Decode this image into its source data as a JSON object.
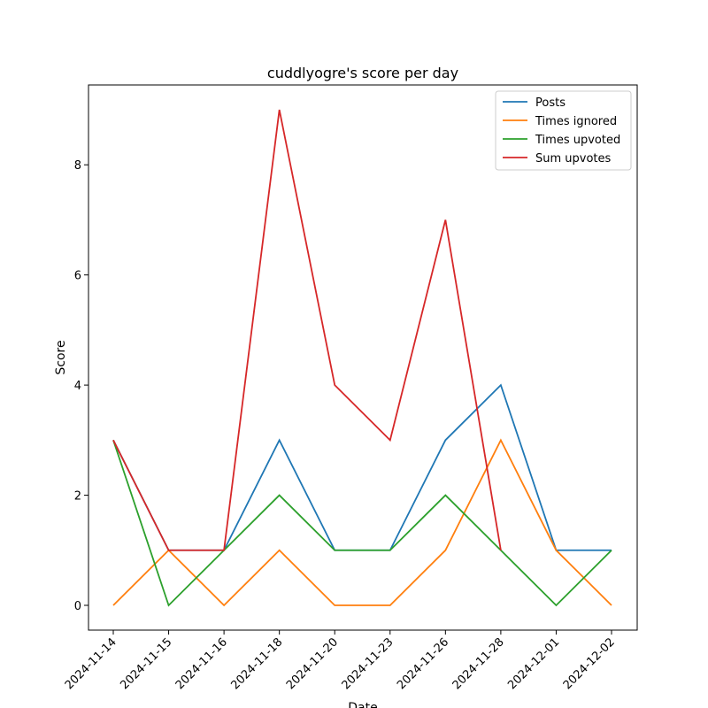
{
  "chart_data": {
    "type": "line",
    "title": "cuddlyogre's score per day",
    "xlabel": "Date",
    "ylabel": "Score",
    "categories": [
      "2024-11-14",
      "2024-11-15",
      "2024-11-16",
      "2024-11-18",
      "2024-11-20",
      "2024-11-23",
      "2024-11-26",
      "2024-11-28",
      "2024-12-01",
      "2024-12-02"
    ],
    "yticks": [
      0,
      2,
      4,
      6,
      8
    ],
    "ylim": [
      -0.45,
      9.45
    ],
    "grid": false,
    "legend_position": "top-right",
    "series": [
      {
        "name": "Posts",
        "color": "#1f77b4",
        "values": [
          3,
          1,
          1,
          3,
          1,
          1,
          3,
          4,
          1,
          1
        ]
      },
      {
        "name": "Times ignored",
        "color": "#ff7f0e",
        "values": [
          0,
          1,
          0,
          1,
          0,
          0,
          1,
          3,
          1,
          0
        ]
      },
      {
        "name": "Times upvoted",
        "color": "#2ca02c",
        "values": [
          3,
          0,
          1,
          2,
          1,
          1,
          2,
          1,
          0,
          1
        ]
      },
      {
        "name": "Sum upvotes",
        "color": "#d62728",
        "values": [
          3,
          1,
          1,
          9,
          4,
          3,
          7,
          1,
          null,
          null
        ]
      }
    ]
  }
}
